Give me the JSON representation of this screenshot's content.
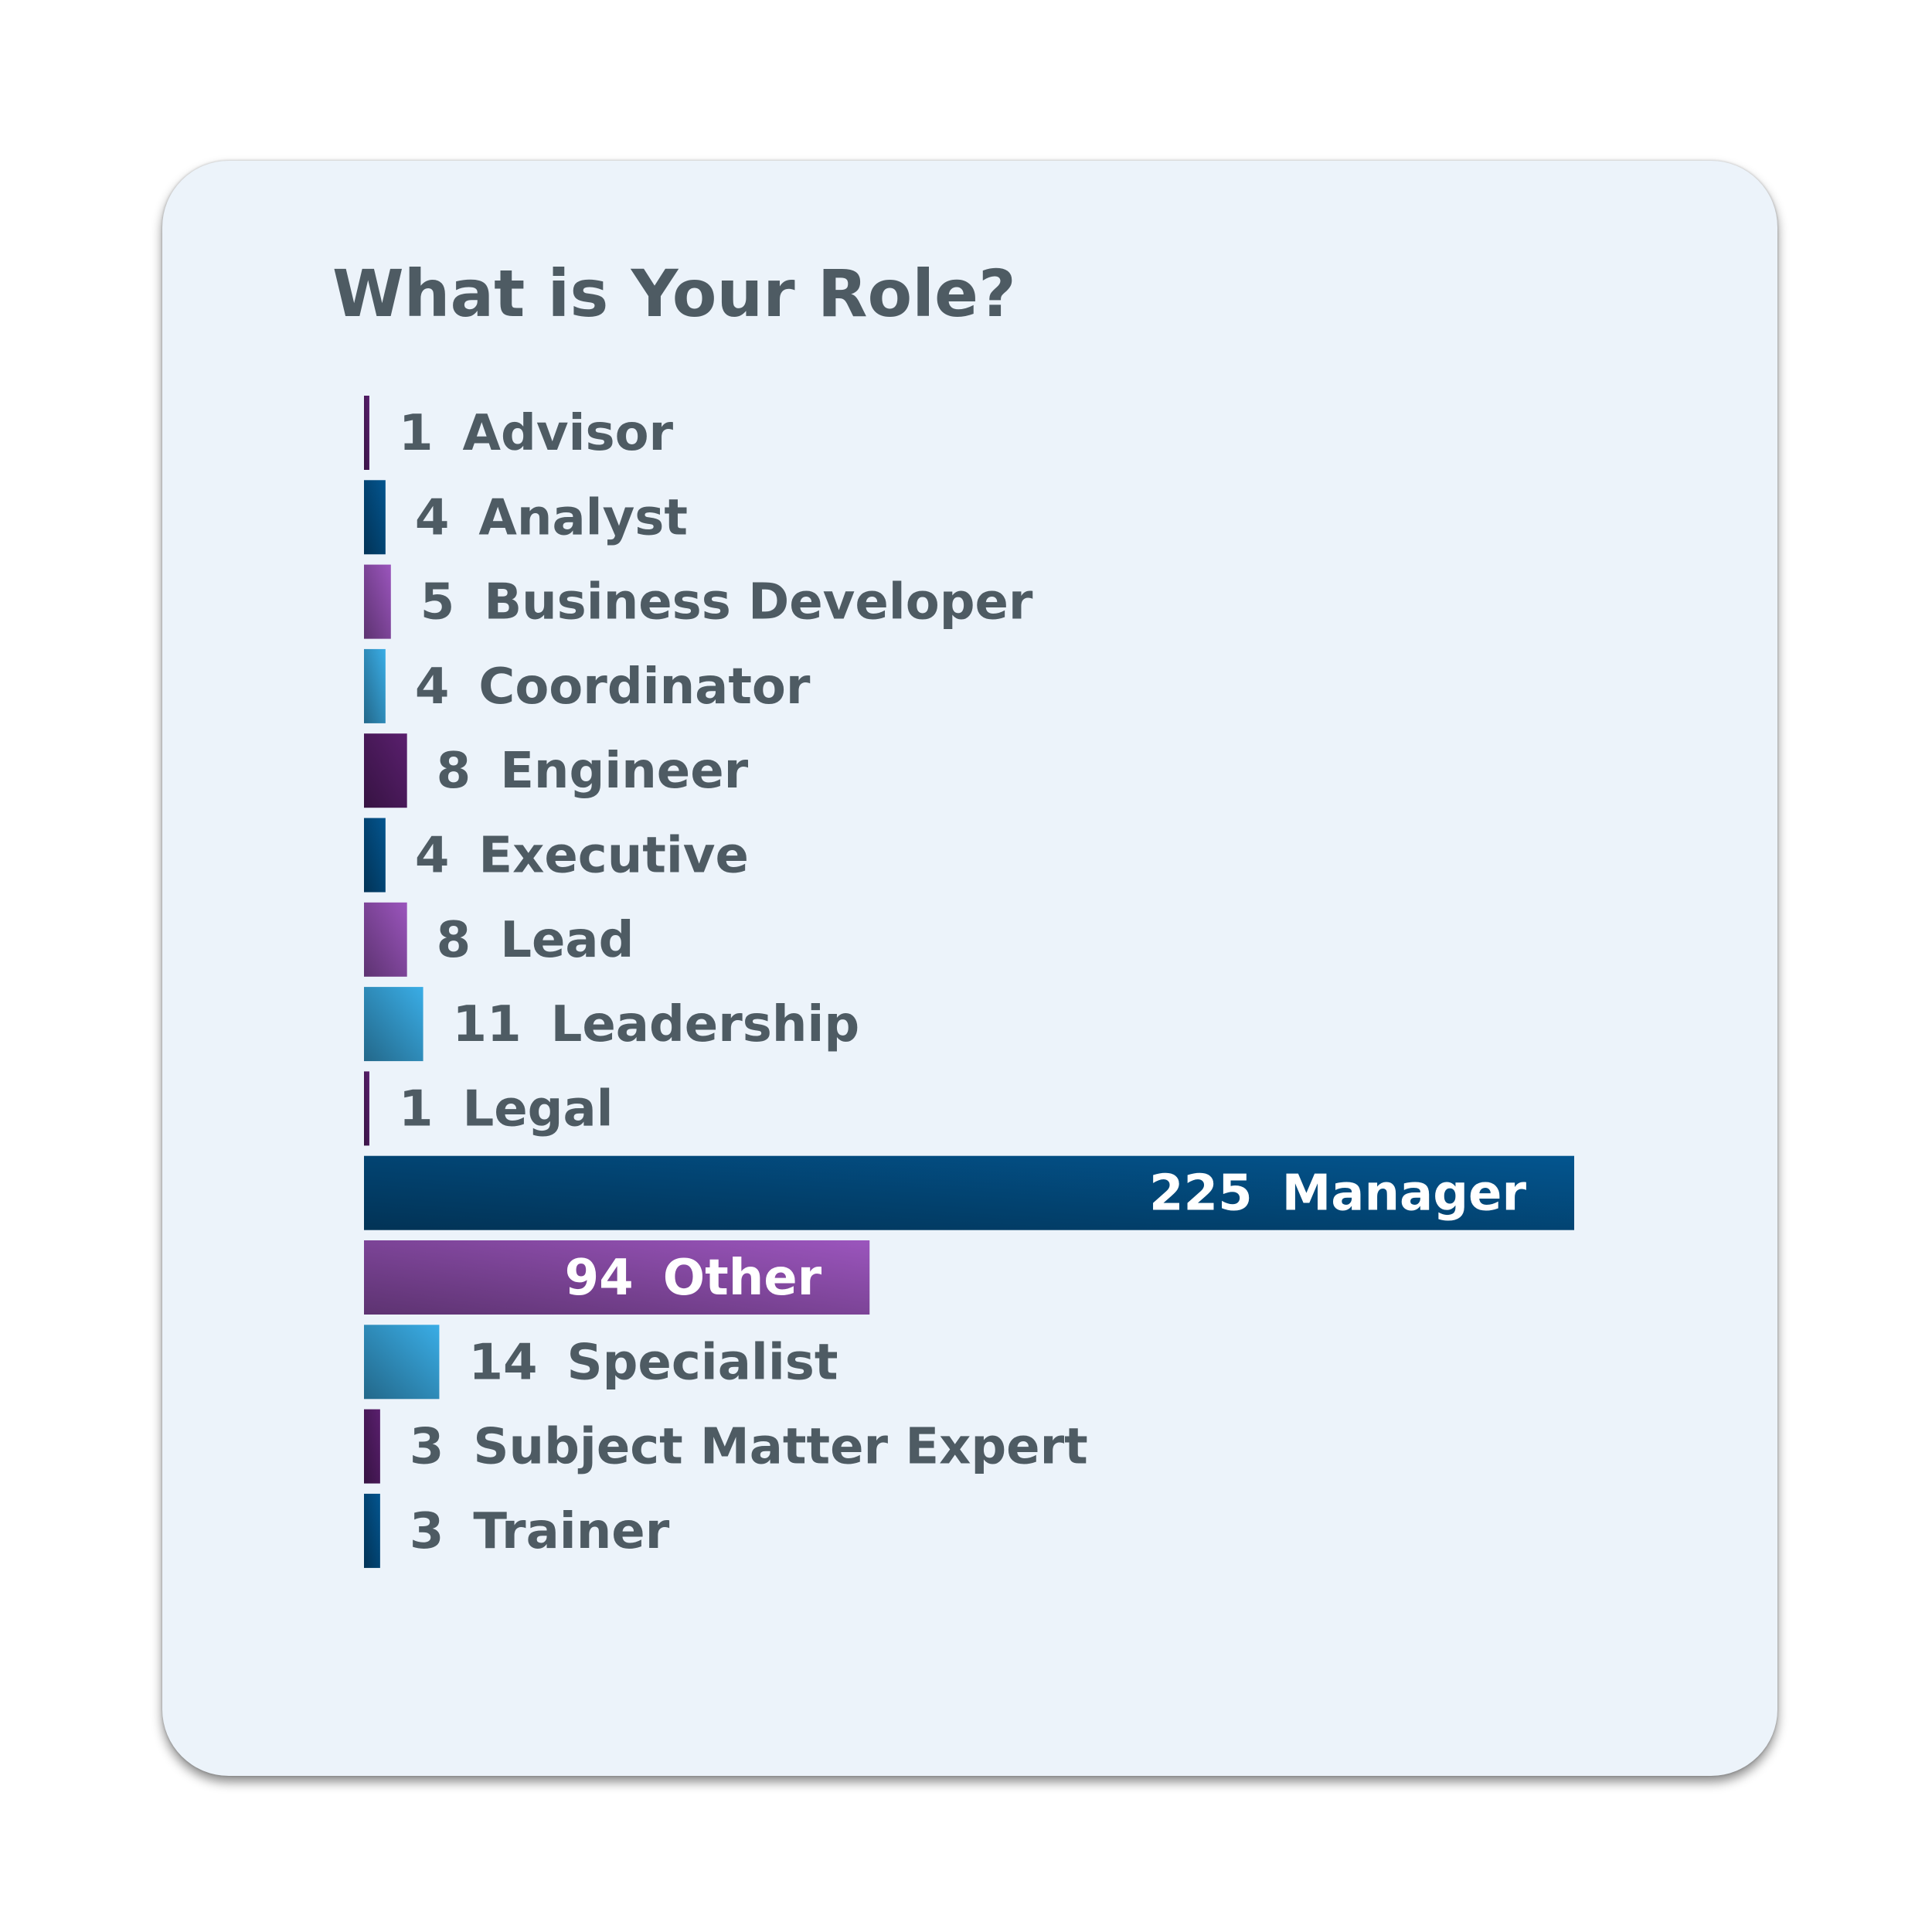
{
  "chart_data": {
    "type": "bar",
    "orientation": "horizontal",
    "title": "What is Your Role?",
    "xlabel": "",
    "ylabel": "",
    "grid": false,
    "categories": [
      "Advisor",
      "Analyst",
      "Business Developer",
      "Coordinator",
      "Engineer",
      "Executive",
      "Lead",
      "Leadership",
      "Legal",
      "Manager",
      "Other",
      "Specialist",
      "Subject Matter Expert",
      "Trainer"
    ],
    "values": [
      1,
      4,
      5,
      4,
      8,
      4,
      8,
      11,
      1,
      225,
      94,
      14,
      3,
      3
    ],
    "bar_colors": [
      "#5a1f6e",
      "#03558f",
      "#9b55bd",
      "#3aade6",
      "#5a1f6e",
      "#03558f",
      "#9b55bd",
      "#3aade6",
      "#5a1f6e",
      "#03558f",
      "#9b55bd",
      "#3aade6",
      "#5a1f6e",
      "#03558f"
    ],
    "label_color_outside": "#4e5b63",
    "label_color_inside": "#ffffff",
    "card_background": "#ecf3fa"
  }
}
